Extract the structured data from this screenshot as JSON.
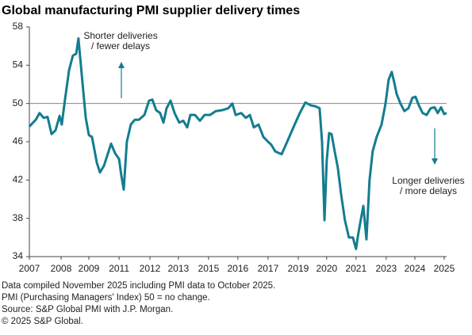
{
  "chart_data": {
    "type": "line",
    "title": "Global manufacturing PMI supplier delivery times",
    "annotations": [
      {
        "lines": [
          "Shorter deliveries",
          "/ fewer delays"
        ],
        "direction": "up"
      },
      {
        "lines": [
          "Longer deliveries",
          "/ more delays"
        ],
        "direction": "down"
      }
    ],
    "notes": [
      "Data compiled November 2025 including PMI data to October 2025.",
      "PMI (Purchasing Managers' Index) 50 = no change.",
      "Source: S&P Global PMI with J.P. Morgan.",
      "© 2025 S&P Global."
    ],
    "reference_line": 50,
    "xlim": [
      2007,
      2025.79
    ],
    "ylim": [
      34,
      58
    ],
    "yticks": [
      34,
      38,
      42,
      46,
      50,
      54,
      58
    ],
    "xticks": [
      {
        "value": 2007,
        "label": "2007"
      },
      {
        "value": 2008.43,
        "label": "2008"
      },
      {
        "value": 2009.68,
        "label": "2009"
      },
      {
        "value": 2011.04,
        "label": "2011"
      },
      {
        "value": 2012.43,
        "label": "2012"
      },
      {
        "value": 2013.71,
        "label": "2013"
      },
      {
        "value": 2015.07,
        "label": "2015"
      },
      {
        "value": 2016.39,
        "label": "2016"
      },
      {
        "value": 2017.75,
        "label": "2017"
      },
      {
        "value": 2019.11,
        "label": "2019"
      },
      {
        "value": 2020.39,
        "label": "2020"
      },
      {
        "value": 2021.71,
        "label": "2021"
      },
      {
        "value": 2023.07,
        "label": "2023"
      },
      {
        "value": 2024.36,
        "label": "2024"
      },
      {
        "value": 2025.68,
        "label": "2025"
      }
    ],
    "x": [
      2007.0,
      2007.29,
      2007.46,
      2007.64,
      2007.82,
      2008.0,
      2008.18,
      2008.36,
      2008.46,
      2008.61,
      2008.79,
      2008.96,
      2009.11,
      2009.21,
      2009.36,
      2009.54,
      2009.68,
      2009.82,
      2010.04,
      2010.18,
      2010.36,
      2010.5,
      2010.68,
      2010.86,
      2011.04,
      2011.14,
      2011.25,
      2011.39,
      2011.57,
      2011.75,
      2011.93,
      2012.18,
      2012.39,
      2012.54,
      2012.71,
      2012.89,
      2013.04,
      2013.18,
      2013.36,
      2013.54,
      2013.75,
      2013.93,
      2014.11,
      2014.25,
      2014.46,
      2014.68,
      2014.89,
      2015.14,
      2015.39,
      2015.68,
      2015.96,
      2016.14,
      2016.29,
      2016.54,
      2016.75,
      2016.93,
      2017.11,
      2017.32,
      2017.54,
      2017.75,
      2017.89,
      2018.07,
      2018.36,
      2018.61,
      2018.89,
      2019.18,
      2019.43,
      2019.68,
      2019.89,
      2020.07,
      2020.18,
      2020.29,
      2020.39,
      2020.5,
      2020.61,
      2020.75,
      2020.89,
      2021.04,
      2021.21,
      2021.39,
      2021.57,
      2021.71,
      2021.82,
      2022.04,
      2022.18,
      2022.32,
      2022.46,
      2022.64,
      2022.86,
      2023.04,
      2023.18,
      2023.32,
      2023.43,
      2023.54,
      2023.71,
      2023.89,
      2024.07,
      2024.25,
      2024.39,
      2024.54,
      2024.71,
      2024.89,
      2025.07,
      2025.25,
      2025.39,
      2025.54,
      2025.68,
      2025.79
    ],
    "series": [
      {
        "color": "#137d8f",
        "values": [
          47.6,
          48.3,
          49.0,
          48.5,
          48.6,
          46.8,
          47.2,
          48.7,
          47.8,
          50.5,
          53.5,
          55.0,
          55.2,
          56.8,
          53.0,
          48.5,
          46.7,
          46.5,
          43.8,
          42.8,
          43.5,
          44.5,
          45.8,
          44.8,
          44.2,
          42.5,
          41.0,
          46.0,
          47.8,
          48.3,
          48.3,
          48.8,
          50.3,
          50.4,
          49.3,
          49.0,
          48.0,
          49.5,
          50.3,
          49.0,
          48.0,
          48.2,
          47.5,
          48.8,
          48.8,
          48.2,
          48.8,
          48.8,
          49.2,
          49.3,
          49.5,
          50.0,
          48.8,
          49.0,
          48.5,
          48.8,
          47.5,
          47.8,
          46.5,
          46.0,
          45.7,
          45.0,
          44.7,
          46.0,
          47.5,
          49.0,
          50.1,
          49.8,
          49.7,
          49.5,
          46.0,
          37.8,
          44.0,
          46.9,
          46.8,
          45.0,
          43.3,
          40.5,
          37.8,
          36.0,
          36.0,
          34.8,
          36.5,
          39.3,
          35.8,
          42.0,
          45.0,
          46.5,
          47.8,
          50.0,
          52.5,
          53.3,
          52.2,
          51.0,
          50.0,
          49.2,
          49.5,
          50.6,
          50.7,
          49.8,
          49.0,
          48.8,
          49.5,
          49.6,
          49.0,
          49.6,
          48.9,
          49.0
        ]
      }
    ]
  }
}
